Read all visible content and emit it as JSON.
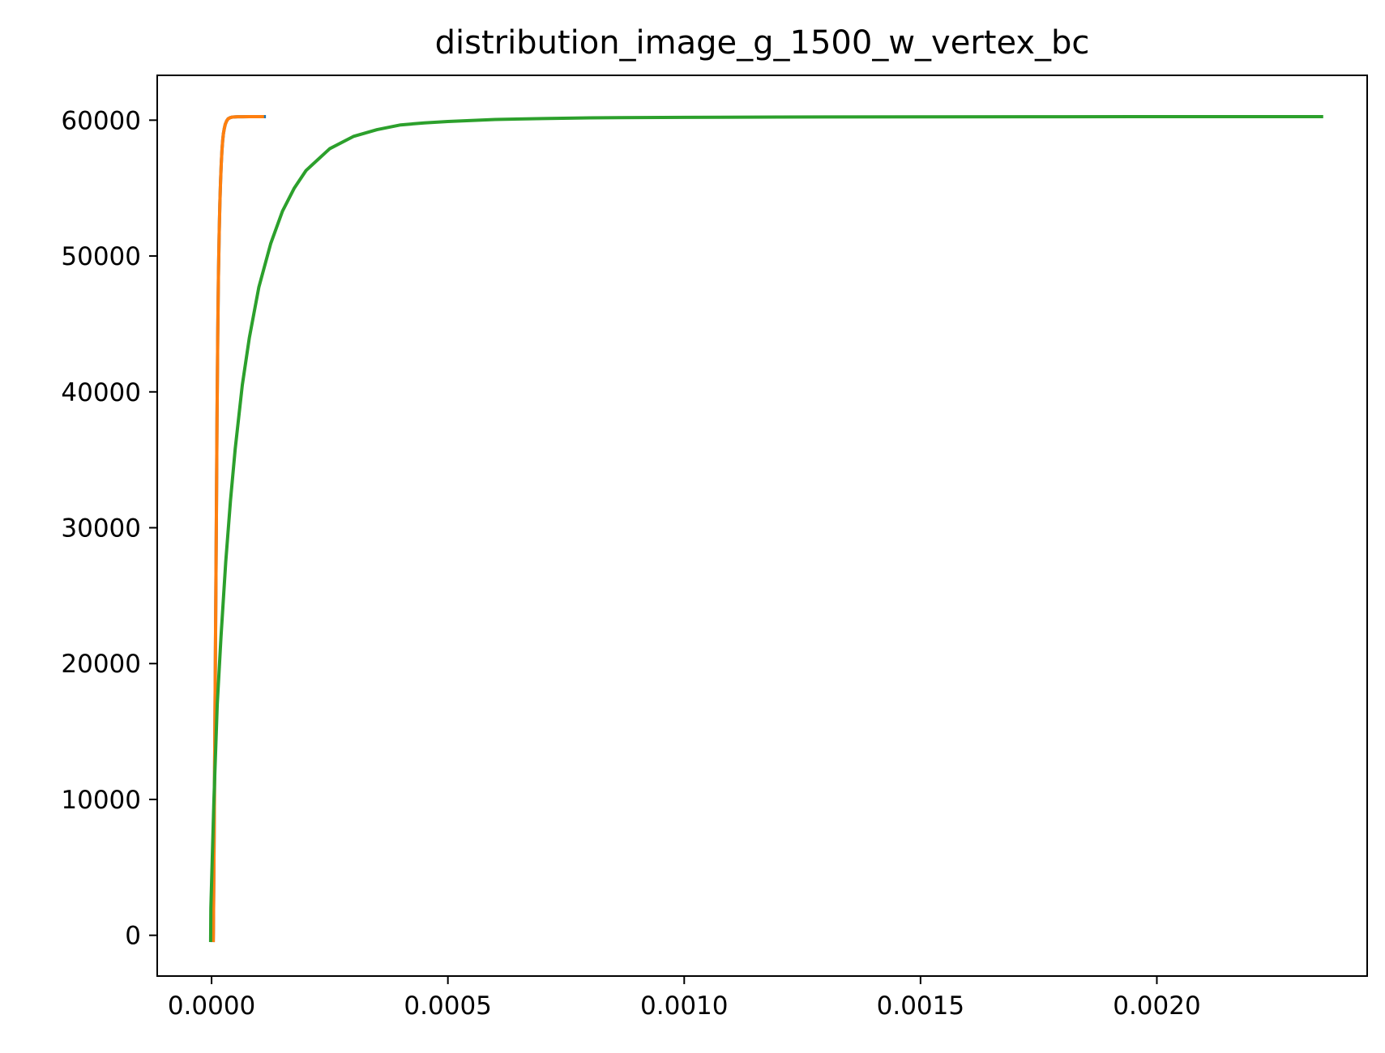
{
  "chart_data": {
    "type": "line",
    "title": "distribution_image_g_1500_w_vertex_bc",
    "xlabel": "",
    "ylabel": "",
    "xlim": [
      -0.000115,
      0.002445
    ],
    "ylim": [
      -3000,
      63300
    ],
    "x_ticks": [
      0.0,
      0.0005,
      0.001,
      0.0015,
      0.002
    ],
    "x_tick_labels": [
      "0.0000",
      "0.0005",
      "0.0010",
      "0.0015",
      "0.0020"
    ],
    "y_ticks": [
      0,
      10000,
      20000,
      30000,
      40000,
      50000,
      60000
    ],
    "y_tick_labels": [
      "0",
      "10000",
      "20000",
      "30000",
      "40000",
      "50000",
      "60000"
    ],
    "grid": false,
    "legend": "none",
    "series": [
      {
        "color": "#1f77b4",
        "x": [
          3.5e-06,
          3.8e-06,
          6e-06,
          8e-06,
          1e-05,
          1.15e-05,
          1.3e-05,
          1.45e-05,
          1.6e-05,
          1.75e-05,
          1.9e-05,
          2.05e-05,
          2.2e-05,
          2.35e-05,
          2.5e-05,
          2.7e-05,
          2.9e-05,
          3.2e-05,
          3.5e-05,
          3.9e-05,
          4.3e-05,
          4.8e-05,
          5.5e-05,
          6.5e-05,
          8e-05,
          0.0001,
          0.000115
        ],
        "y": [
          -500,
          200,
          10000,
          20000,
          30000,
          38000,
          44000,
          48500,
          51500,
          53800,
          55500,
          56800,
          57800,
          58500,
          59000,
          59400,
          59700,
          59950,
          60100,
          60180,
          60220,
          60240,
          60250,
          60255,
          60258,
          60260,
          60260
        ]
      },
      {
        "color": "#ff7f0e",
        "x": [
          3.5e-06,
          3.8e-06,
          6e-06,
          8e-06,
          1e-05,
          1.15e-05,
          1.3e-05,
          1.45e-05,
          1.6e-05,
          1.75e-05,
          1.9e-05,
          2.05e-05,
          2.2e-05,
          2.35e-05,
          2.5e-05,
          2.7e-05,
          2.9e-05,
          3.2e-05,
          3.5e-05,
          3.9e-05,
          4.3e-05,
          4.8e-05,
          5.5e-05,
          6.5e-05,
          8e-05,
          0.0001,
          0.000111
        ],
        "y": [
          -500,
          200,
          10000,
          20000,
          30000,
          38000,
          44000,
          48500,
          51500,
          53800,
          55500,
          56800,
          57800,
          58500,
          59000,
          59400,
          59700,
          59950,
          60100,
          60180,
          60220,
          60240,
          60250,
          60255,
          60258,
          60260,
          60260
        ]
      },
      {
        "color": "#2ca02c",
        "x": [
          -2e-06,
          -1.5e-06,
          5e-06,
          1.2e-05,
          2e-05,
          3e-05,
          4e-05,
          5e-05,
          6.5e-05,
          8e-05,
          0.0001,
          0.000125,
          0.00015,
          0.000175,
          0.0002,
          0.00025,
          0.0003,
          0.00035,
          0.0004,
          0.00045,
          0.0005,
          0.0006,
          0.0007,
          0.0008,
          0.001,
          0.0012,
          0.0015,
          0.0018,
          0.0021,
          0.002352
        ],
        "y": [
          -500,
          2000,
          10000,
          17000,
          22000,
          27500,
          32000,
          35800,
          40500,
          44000,
          47700,
          50900,
          53300,
          55000,
          56300,
          57900,
          58800,
          59300,
          59650,
          59800,
          59900,
          60050,
          60120,
          60170,
          60210,
          60230,
          60245,
          60255,
          60258,
          60260
        ]
      }
    ]
  }
}
